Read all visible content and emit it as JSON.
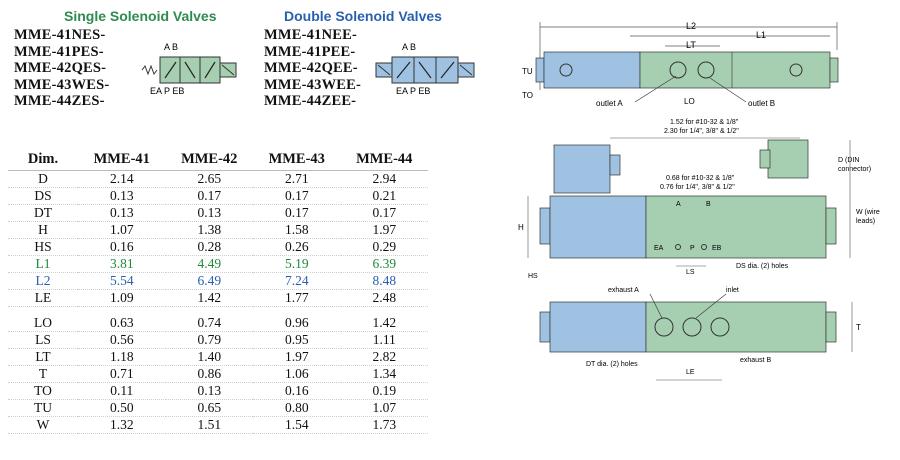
{
  "headers": {
    "single": "Single Solenoid Valves",
    "double": "Double Solenoid Valves"
  },
  "single_models": [
    "MME-41NES-",
    "MME-41PES-",
    "MME-42QES-",
    "MME-43WES-",
    "MME-44ZES-"
  ],
  "double_models": [
    "MME-41NEE-",
    "MME-41PEE-",
    "MME-42QEE-",
    "MME-43WEE-",
    "MME-44ZEE-"
  ],
  "symbol_labels": {
    "ab": "A B",
    "ports": "EA P EB"
  },
  "table": {
    "columns": [
      "Dim.",
      "MME-41",
      "MME-42",
      "MME-43",
      "MME-44"
    ],
    "rows": [
      {
        "dim": "D",
        "v": [
          "2.14",
          "2.65",
          "2.71",
          "2.94"
        ]
      },
      {
        "dim": "DS",
        "v": [
          "0.13",
          "0.17",
          "0.17",
          "0.21"
        ]
      },
      {
        "dim": "DT",
        "v": [
          "0.13",
          "0.13",
          "0.17",
          "0.17"
        ]
      },
      {
        "dim": "H",
        "v": [
          "1.07",
          "1.38",
          "1.58",
          "1.97"
        ]
      },
      {
        "dim": "HS",
        "v": [
          "0.16",
          "0.28",
          "0.26",
          "0.29"
        ]
      },
      {
        "dim": "L1",
        "v": [
          "3.81",
          "4.49",
          "5.19",
          "6.39"
        ],
        "color": "green"
      },
      {
        "dim": "L2",
        "v": [
          "5.54",
          "6.49",
          "7.24",
          "8.48"
        ],
        "color": "blue"
      },
      {
        "dim": "LE",
        "v": [
          "1.09",
          "1.42",
          "1.77",
          "2.48"
        ]
      },
      {
        "dim": "LO",
        "v": [
          "0.63",
          "0.74",
          "0.96",
          "1.42"
        ]
      },
      {
        "dim": "LS",
        "v": [
          "0.56",
          "0.79",
          "0.95",
          "1.11"
        ]
      },
      {
        "dim": "LT",
        "v": [
          "1.18",
          "1.40",
          "1.97",
          "2.82"
        ]
      },
      {
        "dim": "T",
        "v": [
          "0.71",
          "0.86",
          "1.06",
          "1.34"
        ]
      },
      {
        "dim": "TO",
        "v": [
          "0.11",
          "0.13",
          "0.16",
          "0.19"
        ]
      },
      {
        "dim": "TU",
        "v": [
          "0.50",
          "0.65",
          "0.80",
          "1.07"
        ]
      },
      {
        "dim": "W",
        "v": [
          "1.32",
          "1.51",
          "1.54",
          "1.73"
        ]
      }
    ]
  },
  "drawing_labels": {
    "L2": "L2",
    "L1": "L1",
    "LT": "LT",
    "LO": "LO",
    "TU": "TU",
    "TO": "TO",
    "outletA": "outlet A",
    "outletB": "outlet B",
    "note1a": "1.52 for #10-32 & 1/8\"",
    "note1b": "2.30 for 1/4\", 3/8\" & 1/2\"",
    "dDin1": "D (DIN",
    "dDin2": "connector)",
    "note2a": "0.68 for #10-32 & 1/8\"",
    "note2b": "0.76 for 1/4\", 3/8\" & 1/2\"",
    "H": "H",
    "HS": "HS",
    "W1": "W (wire",
    "W2": "leads)",
    "A": "A",
    "B": "B",
    "EA": "EA",
    "P": "P",
    "EB": "EB",
    "LS": "LS",
    "dsHoles": "DS dia. (2) holes",
    "exhaustA": "exhaust A",
    "inlet": "inlet",
    "T": "T",
    "dtHoles": "DT dia. (2) holes",
    "LE": "LE",
    "exhaustB": "exhaust B"
  },
  "colors": {
    "valve_green": "#a6cfb2",
    "coil_blue": "#9fc2e2",
    "green_text": "#1f8a3a",
    "blue_text": "#2a5fb0"
  }
}
